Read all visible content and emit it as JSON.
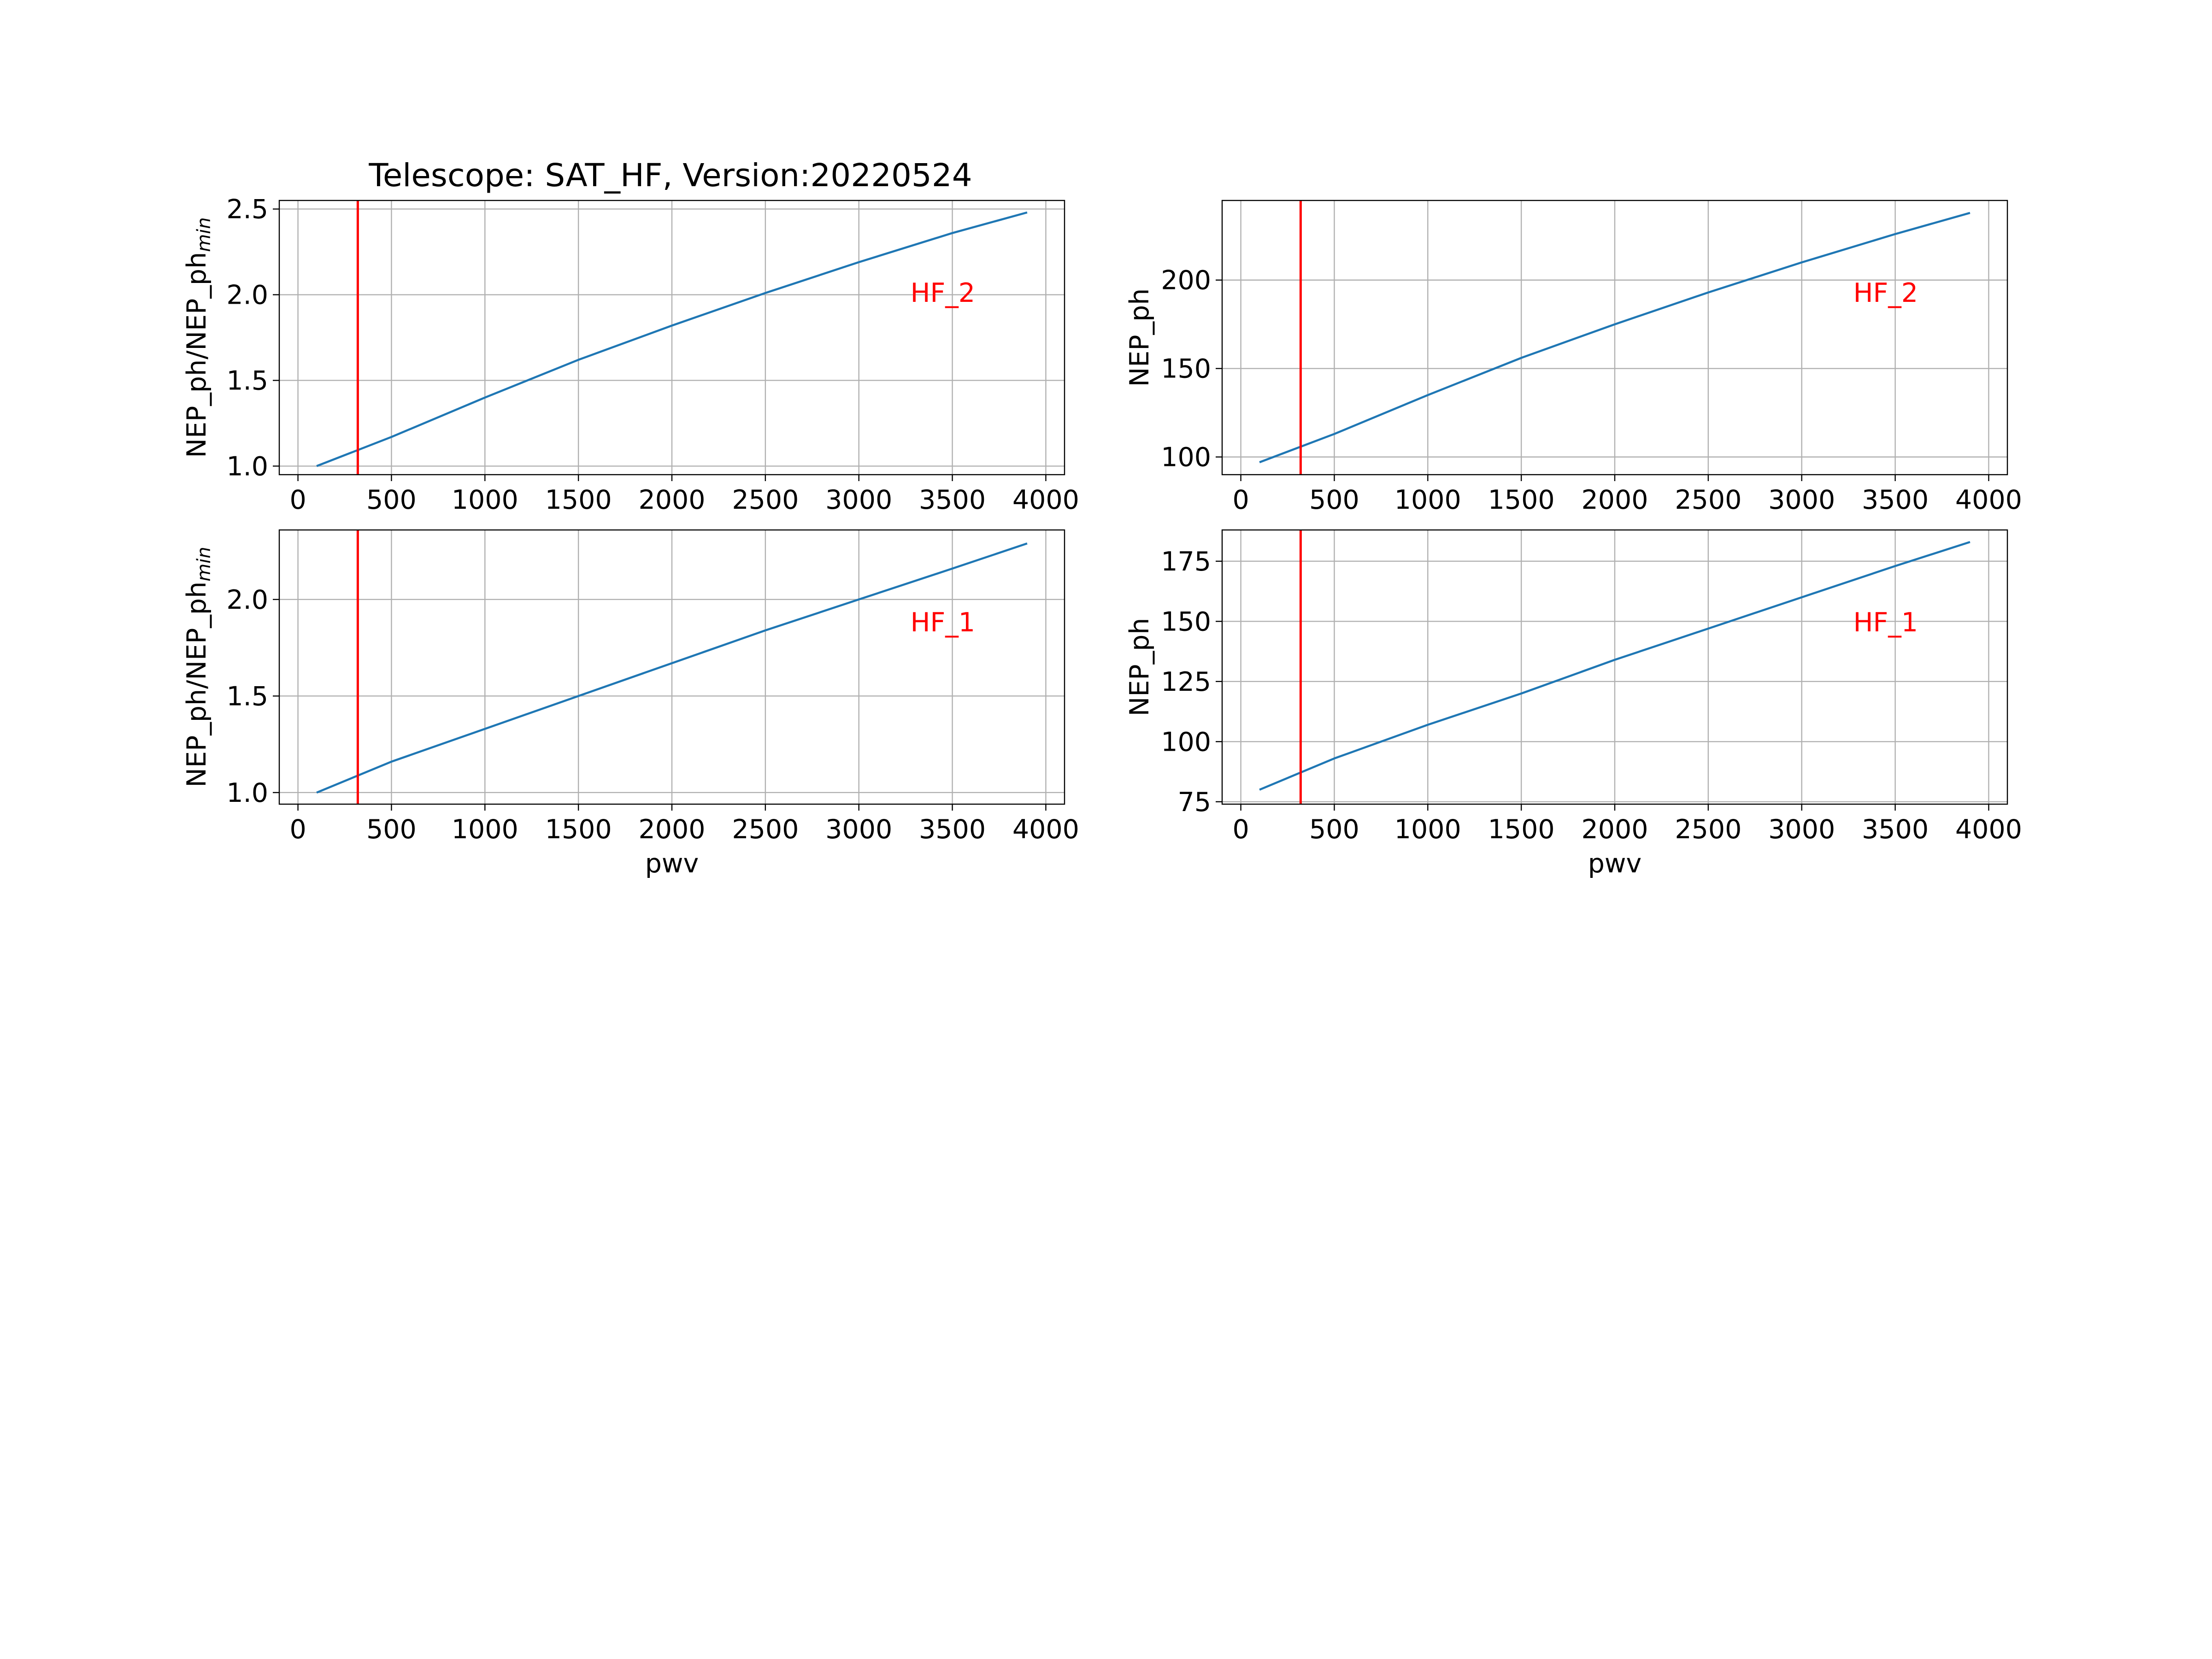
{
  "title": "Telescope: SAT_HF,   Version:20220524",
  "colors": {
    "series": "#1f77b4",
    "marker": "#ff0000",
    "annotation": "#ff0000",
    "grid": "#b0b0b0",
    "frame": "#000000"
  },
  "chart_data": [
    {
      "type": "line",
      "title": "Telescope: SAT_HF,   Version:20220524",
      "annotation": "HF_2",
      "xlabel": "",
      "ylabel": "NEP_ph/NEP_ph",
      "ylabel_sub": "min",
      "xlim": [
        -100,
        4100
      ],
      "ylim": [
        0.95,
        2.55
      ],
      "xticks": [
        0,
        500,
        1000,
        1500,
        2000,
        2500,
        3000,
        3500,
        4000
      ],
      "xtick_labels": [
        "0",
        "500",
        "1000",
        "1500",
        "2000",
        "2500",
        "3000",
        "3500",
        "4000"
      ],
      "yticks": [
        1.0,
        1.5,
        2.0,
        2.5
      ],
      "ytick_labels": [
        "1.0",
        "1.5",
        "2.0",
        "2.5"
      ],
      "grid": true,
      "vline_x": 320,
      "series": [
        {
          "x": [
            100,
            500,
            1000,
            1500,
            2000,
            2500,
            3000,
            3500,
            3900
          ],
          "y": [
            1.0,
            1.17,
            1.4,
            1.62,
            1.82,
            2.01,
            2.19,
            2.36,
            2.48
          ]
        }
      ]
    },
    {
      "type": "line",
      "annotation": "HF_2",
      "xlabel": "",
      "ylabel": "NEP_ph",
      "ylabel_sub": "",
      "xlim": [
        -100,
        4100
      ],
      "ylim": [
        90,
        245
      ],
      "xticks": [
        0,
        500,
        1000,
        1500,
        2000,
        2500,
        3000,
        3500,
        4000
      ],
      "xtick_labels": [
        "0",
        "500",
        "1000",
        "1500",
        "2000",
        "2500",
        "3000",
        "3500",
        "4000"
      ],
      "yticks": [
        100,
        150,
        200
      ],
      "ytick_labels": [
        "100",
        "150",
        "200"
      ],
      "grid": true,
      "vline_x": 320,
      "series": [
        {
          "x": [
            100,
            500,
            1000,
            1500,
            2000,
            2500,
            3000,
            3500,
            3900
          ],
          "y": [
            97,
            113,
            135,
            156,
            175,
            193,
            210,
            226,
            238
          ]
        }
      ]
    },
    {
      "type": "line",
      "annotation": "HF_1",
      "xlabel": "pwv",
      "ylabel": "NEP_ph/NEP_ph",
      "ylabel_sub": "min",
      "xlim": [
        -100,
        4100
      ],
      "ylim": [
        0.94,
        2.36
      ],
      "xticks": [
        0,
        500,
        1000,
        1500,
        2000,
        2500,
        3000,
        3500,
        4000
      ],
      "xtick_labels": [
        "0",
        "500",
        "1000",
        "1500",
        "2000",
        "2500",
        "3000",
        "3500",
        "4000"
      ],
      "yticks": [
        1.0,
        1.5,
        2.0
      ],
      "ytick_labels": [
        "1.0",
        "1.5",
        "2.0"
      ],
      "grid": true,
      "vline_x": 320,
      "series": [
        {
          "x": [
            100,
            500,
            1000,
            1500,
            2000,
            2500,
            3000,
            3500,
            3900
          ],
          "y": [
            1.0,
            1.16,
            1.33,
            1.5,
            1.67,
            1.84,
            2.0,
            2.16,
            2.29
          ]
        }
      ]
    },
    {
      "type": "line",
      "annotation": "HF_1",
      "xlabel": "pwv",
      "ylabel": "NEP_ph",
      "ylabel_sub": "",
      "xlim": [
        -100,
        4100
      ],
      "ylim": [
        74,
        188
      ],
      "xticks": [
        0,
        500,
        1000,
        1500,
        2000,
        2500,
        3000,
        3500,
        4000
      ],
      "xtick_labels": [
        "0",
        "500",
        "1000",
        "1500",
        "2000",
        "2500",
        "3000",
        "3500",
        "4000"
      ],
      "yticks": [
        75,
        100,
        125,
        150,
        175
      ],
      "ytick_labels": [
        "75",
        "100",
        "125",
        "150",
        "175"
      ],
      "grid": true,
      "vline_x": 320,
      "series": [
        {
          "x": [
            100,
            500,
            1000,
            1500,
            2000,
            2500,
            3000,
            3500,
            3900
          ],
          "y": [
            80,
            93,
            107,
            120,
            134,
            147,
            160,
            173,
            183
          ]
        }
      ]
    }
  ]
}
